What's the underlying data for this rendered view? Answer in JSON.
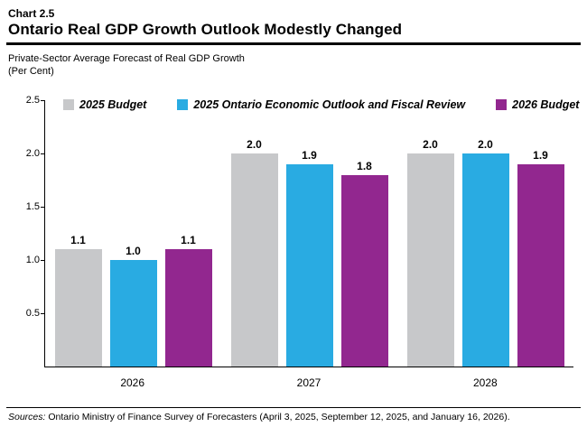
{
  "header": {
    "chart_number": "Chart 2.5",
    "title": "Ontario Real GDP Growth Outlook Modestly Changed"
  },
  "subtitle": {
    "line1": "Private-Sector Average Forecast of Real GDP Growth",
    "line2": "(Per Cent)"
  },
  "chart_data": {
    "type": "bar",
    "title": "Private-Sector Average Forecast of Real GDP Growth (Per Cent)",
    "xlabel": "",
    "ylabel": "Per Cent",
    "categories": [
      "2026",
      "2027",
      "2028"
    ],
    "series": [
      {
        "name": "2025 Budget",
        "color": "#c7c8ca",
        "values": [
          1.1,
          2.0,
          2.0
        ]
      },
      {
        "name": "2025 Ontario Economic Outlook and Fiscal Review",
        "color": "#29abe2",
        "values": [
          1.0,
          1.9,
          2.0
        ]
      },
      {
        "name": "2026 Budget",
        "color": "#92278f",
        "values": [
          1.1,
          1.8,
          1.9
        ]
      }
    ],
    "ylim": [
      0,
      2.5
    ],
    "yticks": [
      0.5,
      1.0,
      1.5,
      2.0,
      2.5
    ],
    "grid": false,
    "legend_position": "top",
    "value_labels": true
  },
  "footer": {
    "sources_label": "Sources:",
    "sources_text": " Ontario Ministry of Finance Survey of Forecasters (April 3, 2025, September 12, 2025, and January 16, 2026)."
  }
}
